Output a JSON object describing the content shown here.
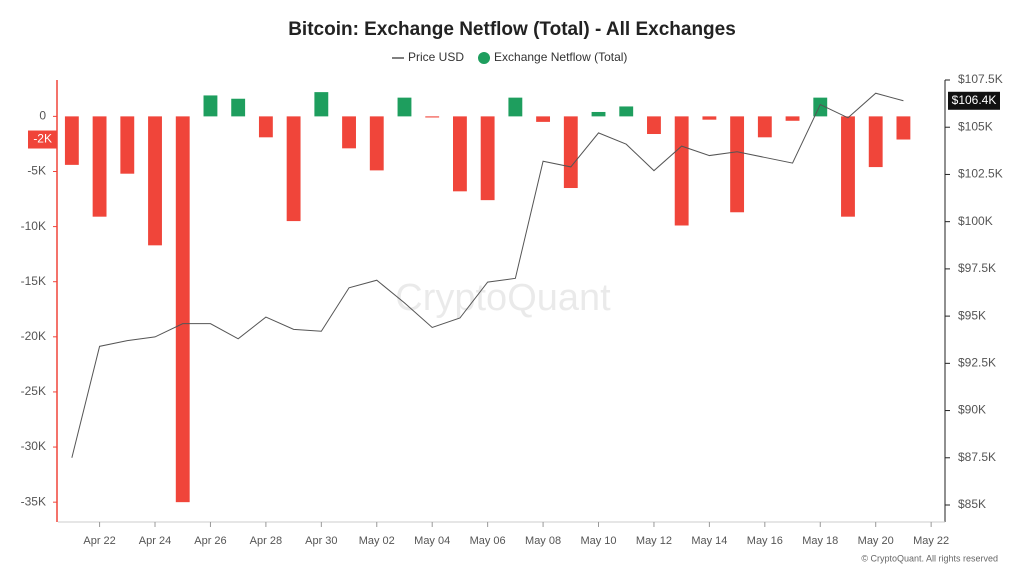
{
  "chart_data": {
    "type": "bar_line",
    "title": "Bitcoin: Exchange Netflow (Total) - All Exchanges",
    "watermark": "CryptoQuant",
    "footer": "© CryptoQuant. All rights reserved",
    "categories": [
      null,
      "Apr 22",
      null,
      "Apr 24",
      null,
      "Apr 26",
      null,
      "Apr 28",
      null,
      "Apr 30",
      null,
      "May 02",
      null,
      "May 04",
      null,
      "May 06",
      null,
      "May 08",
      null,
      "May 10",
      null,
      "May 12",
      null,
      "May 14",
      null,
      "May 16",
      null,
      "May 18",
      null,
      "May 20",
      null,
      "May 22"
    ],
    "series": [
      {
        "name": "Price USD",
        "type": "line",
        "axis": "y2",
        "color": "#555555",
        "values": [
          87500,
          93400,
          93700,
          93900,
          94600,
          94600,
          93800,
          94950,
          94300,
          94200,
          96500,
          96900,
          95700,
          94400,
          94900,
          96800,
          97000,
          103200,
          102900,
          104700,
          104100,
          102700,
          104000,
          103500,
          103700,
          103400,
          103100,
          106200,
          105500,
          106800,
          106400,
          null
        ],
        "current_label": "$106.4K"
      },
      {
        "name": "Exchange Netflow (Total)",
        "type": "bar",
        "color": "#1e9e5e",
        "negative_color": "#f0453a",
        "values": [
          -4400,
          -9100,
          -5200,
          -11700,
          -35000,
          1900,
          1600,
          -1900,
          -9500,
          2200,
          -2900,
          -4900,
          1700,
          -100,
          -6800,
          -7600,
          1700,
          -500,
          -6500,
          400,
          900,
          -1600,
          -9900,
          -300,
          -8700,
          -1900,
          -400,
          1700,
          -9100,
          -4600,
          -2100,
          null
        ],
        "current_label": "-2K"
      }
    ],
    "ylim": [
      -36800,
      3300
    ],
    "yticks": [
      0,
      {
        "value": -5000,
        "label": "-5K"
      },
      {
        "value": -10000,
        "label": "-10K"
      },
      {
        "value": -15000,
        "label": "-15K"
      },
      {
        "value": -20000,
        "label": "-20K"
      },
      {
        "value": -25000,
        "label": "-25K"
      },
      {
        "value": -30000,
        "label": "-30K"
      },
      {
        "value": -35000,
        "label": "-35K"
      }
    ],
    "y2lim": [
      84100,
      107500
    ],
    "y2ticks": [
      {
        "value": 85000,
        "label": "$85K"
      },
      {
        "value": 87500,
        "label": "$87.5K"
      },
      {
        "value": 90000,
        "label": "$90K"
      },
      {
        "value": 92500,
        "label": "$92.5K"
      },
      {
        "value": 95000,
        "label": "$95K"
      },
      {
        "value": 97500,
        "label": "$97.5K"
      },
      {
        "value": 100000,
        "label": "$100K"
      },
      {
        "value": 102500,
        "label": "$102.5K"
      },
      {
        "value": 105000,
        "label": "$105K"
      },
      {
        "value": 107500,
        "label": "$107.5K"
      }
    ],
    "left_axis_color": "#f0453a"
  }
}
